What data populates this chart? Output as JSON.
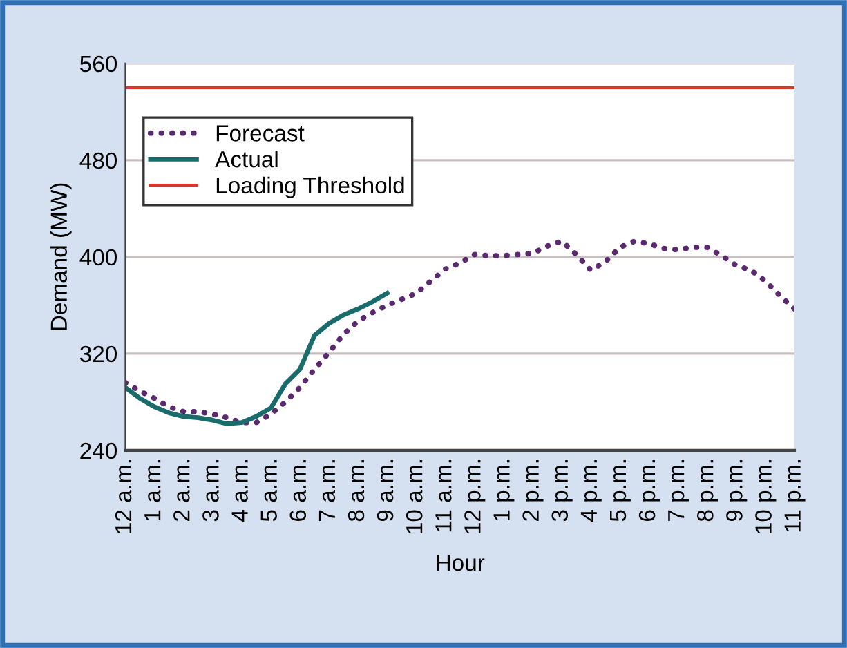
{
  "chart_data": {
    "type": "line",
    "xlabel": "Hour",
    "ylabel": "Demand (MW)",
    "categories": [
      "12 a.m.",
      null,
      "1 a.m.",
      null,
      "2 a.m.",
      null,
      "3 a.m.",
      null,
      "4 a.m.",
      null,
      "5 a.m.",
      null,
      "6 a.m.",
      null,
      "7 a.m.",
      null,
      "8 a.m.",
      null,
      "9 a.m.",
      null,
      "10 a.m.",
      null,
      "11 a.m.",
      null,
      "12 p.m.",
      null,
      "1 p.m.",
      null,
      "2 p.m.",
      null,
      "3 p.m.",
      null,
      "4 p.m.",
      null,
      "5 p.m.",
      null,
      "6 p.m.",
      null,
      "7 p.m.",
      null,
      "8 p.m.",
      null,
      "9 p.m.",
      null,
      "10 p.m.",
      null,
      "11 p.m."
    ],
    "ylim": [
      240,
      560
    ],
    "yticks": [
      240,
      320,
      400,
      480,
      560
    ],
    "grid": "y",
    "legend": "top left",
    "series": [
      {
        "name": "Forecast",
        "color": "#5b2a6e",
        "line_style": "dotted",
        "values": [
          296,
          289,
          283,
          276,
          272,
          272,
          270,
          267,
          263,
          263,
          270,
          280,
          292,
          307,
          321,
          336,
          347,
          354,
          360,
          365,
          370,
          380,
          390,
          395,
          402,
          401,
          401,
          402,
          403,
          409,
          413,
          402,
          389,
          396,
          408,
          413,
          411,
          407,
          406,
          408,
          408,
          401,
          393,
          389,
          380,
          368,
          357
        ]
      },
      {
        "name": "Actual",
        "color": "#1a6b6b",
        "line_style": "solid",
        "values": [
          292,
          283,
          276,
          271,
          268,
          267,
          265,
          262,
          263,
          268,
          275,
          295,
          307,
          335,
          345,
          352,
          357,
          363,
          370,
          null,
          null,
          null,
          null,
          null,
          null,
          null,
          null,
          null,
          null,
          null,
          null,
          null,
          null,
          null,
          null,
          null,
          null,
          null,
          null,
          null,
          null,
          null,
          null,
          null,
          null,
          null,
          null
        ]
      }
    ],
    "ref_lines": [
      {
        "axis": "y",
        "value": 540,
        "label": "Loading Threshold",
        "color": "#d9372e",
        "line_style": "solid"
      }
    ]
  }
}
